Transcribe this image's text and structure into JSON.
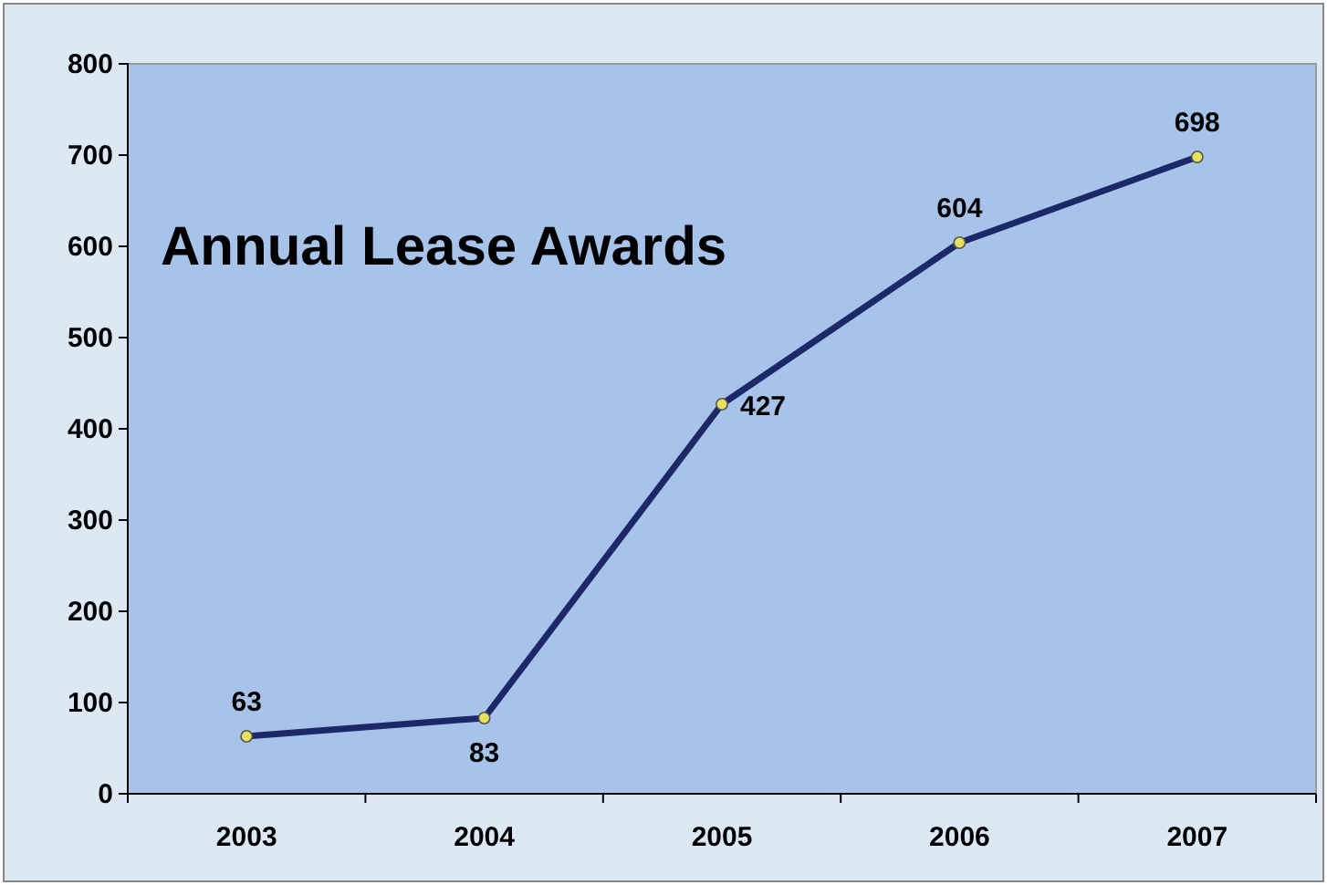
{
  "chart_data": {
    "type": "line",
    "title": "Annual Lease Awards",
    "categories": [
      "2003",
      "2004",
      "2005",
      "2006",
      "2007"
    ],
    "series": [
      {
        "color": "#1c2868",
        "values": [
          63,
          83,
          427,
          604,
          698
        ]
      }
    ],
    "ylim": [
      0,
      800
    ],
    "yticks": [
      0,
      100,
      200,
      300,
      400,
      500,
      600,
      700,
      800
    ],
    "marker": "circle",
    "data_labels": true,
    "grid": false
  }
}
